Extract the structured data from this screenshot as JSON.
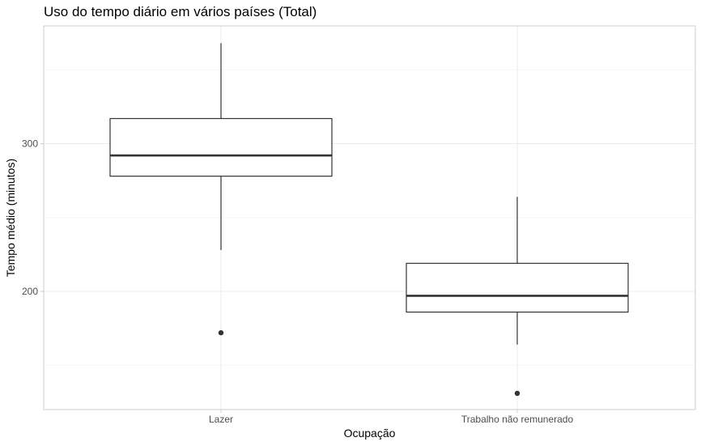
{
  "chart_data": {
    "type": "boxplot",
    "title": "Uso do tempo diário em vários países (Total)",
    "xlabel": "Ocupação",
    "ylabel": "Tempo médio (minutos)",
    "ylim": [
      131,
      373
    ],
    "yticks": [
      {
        "value": 200,
        "label": "200"
      },
      {
        "value": 300,
        "label": "300"
      }
    ],
    "minor_yticks": [
      150,
      250,
      350
    ],
    "grid": true,
    "categories": [
      {
        "label": "Lazer",
        "whisker_low": 228,
        "q1": 278,
        "median": 292,
        "q3": 317,
        "whisker_high": 368,
        "outliers": [
          172
        ]
      },
      {
        "label": "Trabalho não remunerado",
        "whisker_low": 164,
        "q1": 186,
        "median": 197,
        "q3": 219,
        "whisker_high": 264,
        "outliers": [
          131
        ]
      }
    ],
    "colors": {
      "box_fill": "#ffffff",
      "box_stroke": "#333333",
      "grid": "#ebebeb",
      "panel_border": "#cccccc"
    }
  }
}
